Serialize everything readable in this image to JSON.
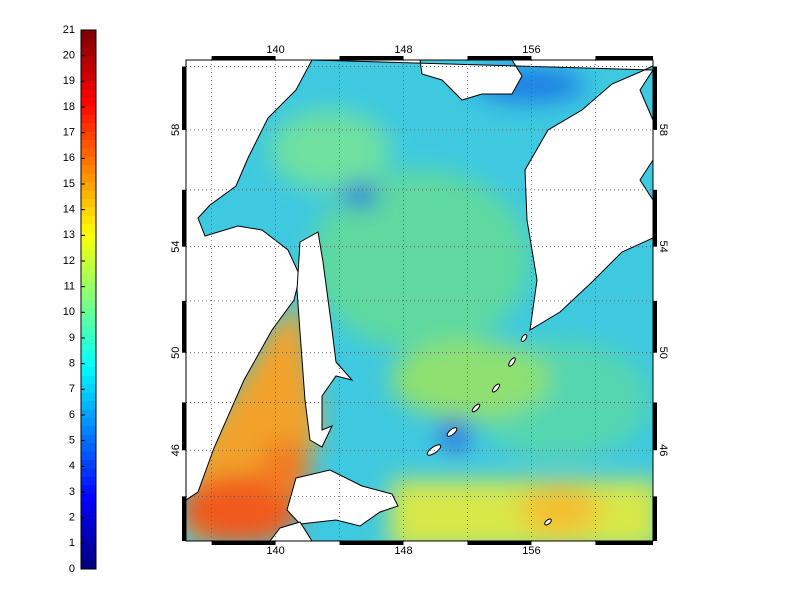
{
  "colorbar": {
    "range": [
      0,
      21
    ],
    "ticks": [
      0,
      1,
      2,
      3,
      4,
      5,
      6,
      7,
      8,
      9,
      10,
      11,
      12,
      13,
      14,
      15,
      16,
      17,
      18,
      19,
      20,
      21
    ]
  },
  "map": {
    "lonlim": [
      134.4,
      163.6
    ],
    "latlim": [
      42,
      60.2
    ],
    "lon_ticks": [
      140,
      148,
      156
    ],
    "lat_ticks": [
      46,
      50,
      54,
      58
    ],
    "grid": true
  }
}
